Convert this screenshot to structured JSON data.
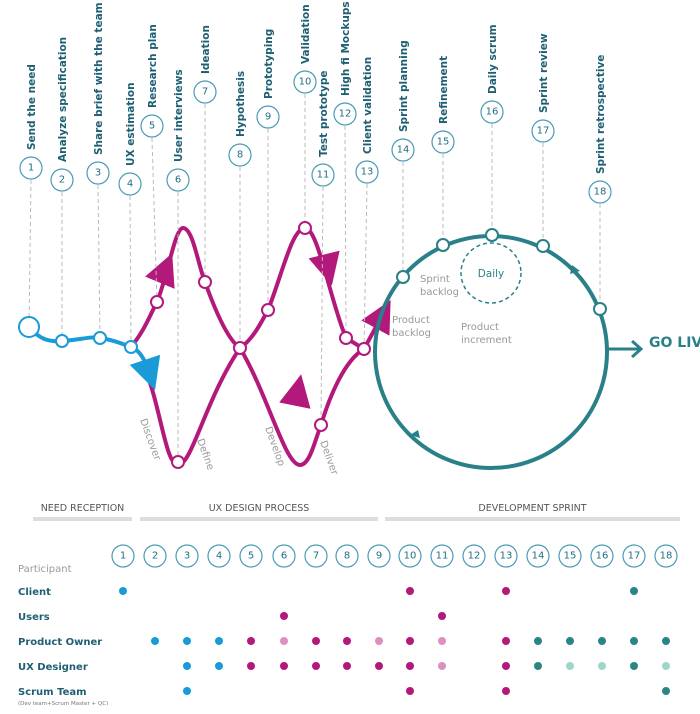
{
  "steps": [
    {
      "number": "1",
      "label": "Send the need"
    },
    {
      "number": "2",
      "label": "Analyze specification"
    },
    {
      "number": "3",
      "label": "Share brief with the team"
    },
    {
      "number": "4",
      "label": "UX estimation"
    },
    {
      "number": "5",
      "label": "Research plan"
    },
    {
      "number": "6",
      "label": "User interviews"
    },
    {
      "number": "7",
      "label": "Ideation"
    },
    {
      "number": "8",
      "label": "Hypothesis"
    },
    {
      "number": "9",
      "label": "Prototyping"
    },
    {
      "number": "10",
      "label": "Validation"
    },
    {
      "number": "11",
      "label": "Test prototype"
    },
    {
      "number": "12",
      "label": "High fi Mockups"
    },
    {
      "number": "13",
      "label": "Client validation"
    },
    {
      "number": "14",
      "label": "Sprint planning"
    },
    {
      "number": "15",
      "label": "Refinement"
    },
    {
      "number": "16",
      "label": "Daily scrum"
    },
    {
      "number": "17",
      "label": "Sprint review"
    },
    {
      "number": "18",
      "label": "Sprint retrospective"
    }
  ],
  "phases": [
    "Discover",
    "Define",
    "Develop",
    "Deliver"
  ],
  "loop": {
    "daily": "Daily",
    "sprint_backlog": "Sprint backlog",
    "product_backlog": "Product backlog",
    "product_increment": "Product increment",
    "go_live": "GO LIVE"
  },
  "sections": [
    "NEED RECEPTION",
    "UX DESIGN PROCESS",
    "DEVELOPMENT SPRINT"
  ],
  "matrix": {
    "header": "Participant",
    "rows": [
      {
        "name": "Client",
        "dots": [
          "#1a9ad6",
          null,
          null,
          null,
          null,
          null,
          null,
          null,
          null,
          "#b3197a",
          null,
          null,
          "#b3197a",
          null,
          null,
          null,
          "#2a8585",
          null
        ]
      },
      {
        "name": "Users",
        "dots": [
          null,
          null,
          null,
          null,
          null,
          "#b3197a",
          null,
          null,
          null,
          null,
          "#b3197a",
          null,
          null,
          null,
          null,
          null,
          null,
          null
        ]
      },
      {
        "name": "Product Owner",
        "dots": [
          null,
          "#1a9ad6",
          "#1a9ad6",
          "#1a9ad6",
          "#b3197a",
          "#dd8fc0",
          "#b3197a",
          "#b3197a",
          "#dd8fc0",
          "#b3197a",
          "#dd8fc0",
          null,
          "#b3197a",
          "#2a8585",
          "#2a8585",
          "#2a8585",
          "#2a8585",
          "#2a8585"
        ]
      },
      {
        "name": "UX Designer",
        "dots": [
          null,
          null,
          "#1a9ad6",
          "#1a9ad6",
          "#b3197a",
          "#b3197a",
          "#b3197a",
          "#b3197a",
          "#b3197a",
          "#b3197a",
          "#dd8fc0",
          null,
          "#b3197a",
          "#2a8585",
          "#9fd4cf",
          "#9fd4cf",
          "#2a8585",
          "#9fd4cf"
        ]
      },
      {
        "name": "Scrum Team",
        "note": "(Dev team+Scrum Master + QC)",
        "dots": [
          null,
          null,
          "#1a9ad6",
          null,
          null,
          null,
          null,
          null,
          null,
          "#b3197a",
          null,
          null,
          "#b3197a",
          null,
          null,
          null,
          null,
          "#2a8585"
        ]
      }
    ]
  }
}
